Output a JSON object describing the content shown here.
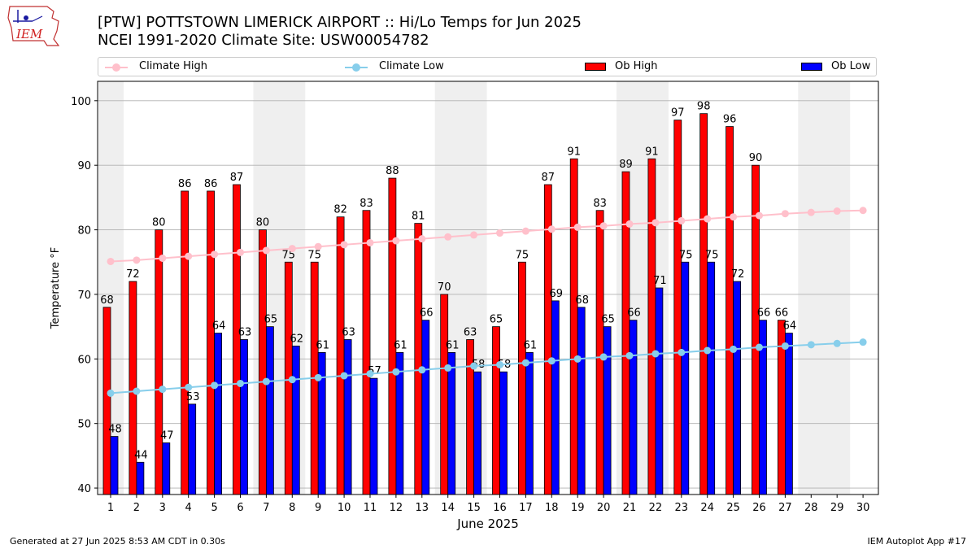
{
  "header": {
    "logo_text": "IEM",
    "title_line1": "[PTW] POTTSTOWN LIMERICK AIRPORT :: Hi/Lo Temps for Jun 2025",
    "title_line2": "NCEI 1991-2020 Climate Site: USW00054782"
  },
  "footer": {
    "generated": "Generated at 27 Jun 2025 8:53 AM CDT in 0.30s",
    "app": "IEM Autoplot App #17"
  },
  "colors": {
    "climate_high": "#ffc0cb",
    "climate_low": "#87ceeb",
    "ob_high": "#ff0000",
    "ob_low": "#0000ff",
    "weekend_shade": "#efefef",
    "grid": "#b0b0b0"
  },
  "chart_data": {
    "type": "bar",
    "xlabel": "June 2025",
    "ylabel": "Temperature °F",
    "ylim": [
      39,
      103
    ],
    "yticks": [
      40,
      50,
      60,
      70,
      80,
      90,
      100
    ],
    "grid": "horizontal",
    "legend_position": "top",
    "days": [
      1,
      2,
      3,
      4,
      5,
      6,
      7,
      8,
      9,
      10,
      11,
      12,
      13,
      14,
      15,
      16,
      17,
      18,
      19,
      20,
      21,
      22,
      23,
      24,
      25,
      26,
      27,
      28,
      29,
      30
    ],
    "weekend_bands": [
      [
        1,
        1
      ],
      [
        7,
        8
      ],
      [
        14,
        15
      ],
      [
        21,
        22
      ],
      [
        28,
        29
      ]
    ],
    "series": [
      {
        "name": "Climate High",
        "kind": "line",
        "values": [
          75.1,
          75.3,
          75.6,
          75.9,
          76.2,
          76.5,
          76.8,
          77.1,
          77.4,
          77.7,
          78.0,
          78.3,
          78.6,
          78.9,
          79.2,
          79.5,
          79.8,
          80.1,
          80.4,
          80.6,
          80.9,
          81.1,
          81.4,
          81.7,
          82.0,
          82.2,
          82.5,
          82.7,
          82.9,
          83.0
        ]
      },
      {
        "name": "Climate Low",
        "kind": "line",
        "values": [
          54.7,
          55.0,
          55.3,
          55.6,
          55.9,
          56.2,
          56.5,
          56.8,
          57.1,
          57.4,
          57.7,
          58.0,
          58.3,
          58.6,
          58.9,
          59.1,
          59.4,
          59.7,
          60.0,
          60.3,
          60.5,
          60.8,
          61.0,
          61.3,
          61.5,
          61.8,
          62.0,
          62.2,
          62.4,
          62.6
        ]
      },
      {
        "name": "Ob High",
        "kind": "bar",
        "values": [
          68,
          72,
          80,
          86,
          86,
          87,
          80,
          75,
          75,
          82,
          83,
          88,
          81,
          70,
          63,
          65,
          75,
          87,
          91,
          83,
          89,
          91,
          97,
          98,
          96,
          90,
          66
        ]
      },
      {
        "name": "Ob Low",
        "kind": "bar",
        "values": [
          48,
          44,
          47,
          53,
          64,
          63,
          65,
          62,
          61,
          63,
          57,
          61,
          66,
          61,
          58,
          58,
          61,
          69,
          68,
          65,
          66,
          71,
          75,
          75,
          72,
          66,
          64
        ]
      }
    ]
  }
}
